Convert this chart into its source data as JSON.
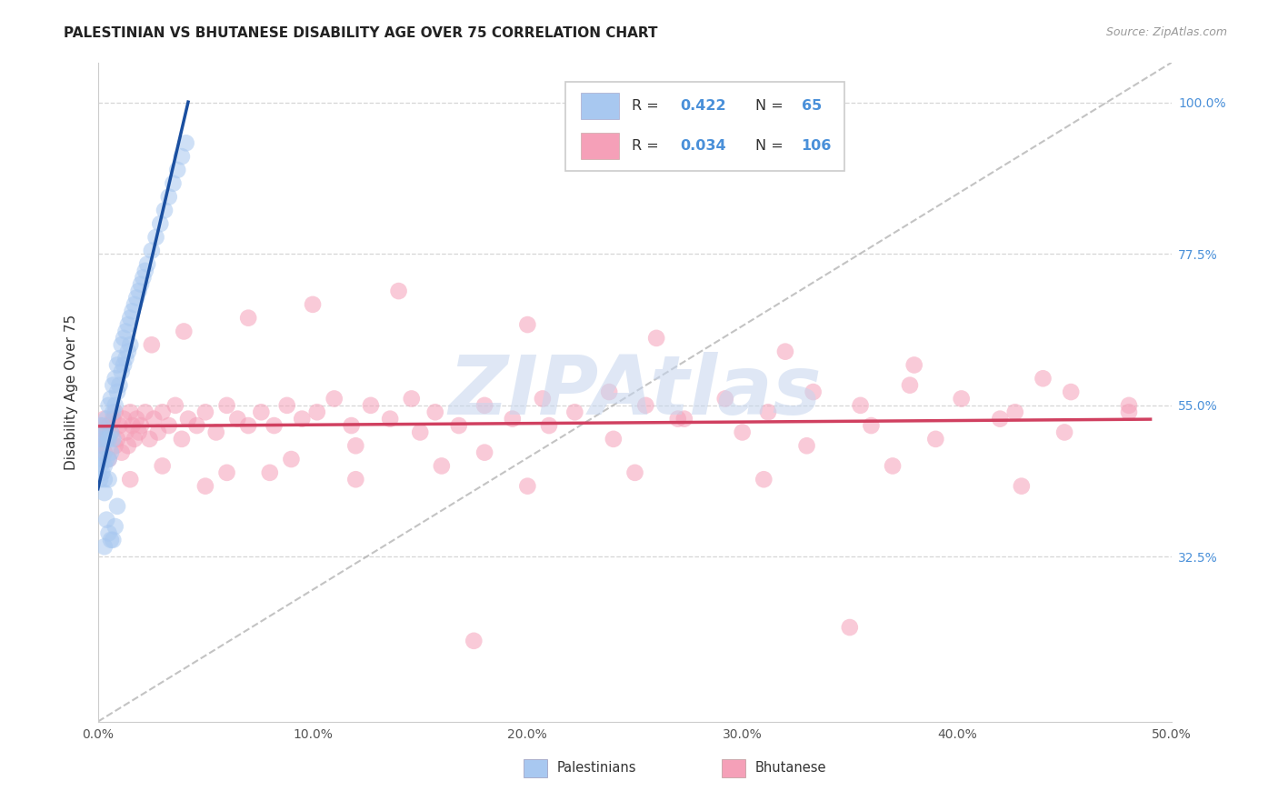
{
  "title": "PALESTINIAN VS BHUTANESE DISABILITY AGE OVER 75 CORRELATION CHART",
  "source": "Source: ZipAtlas.com",
  "ylabel": "Disability Age Over 75",
  "xlim": [
    0.0,
    0.5
  ],
  "ylim": [
    0.08,
    1.06
  ],
  "xtick_vals": [
    0.0,
    0.1,
    0.2,
    0.3,
    0.4,
    0.5
  ],
  "xtick_labels": [
    "0.0%",
    "10.0%",
    "20.0%",
    "30.0%",
    "40.0%",
    "50.0%"
  ],
  "ytick_vals": [
    0.325,
    0.55,
    0.775,
    1.0
  ],
  "ytick_labels": [
    "32.5%",
    "55.0%",
    "77.5%",
    "100.0%"
  ],
  "blue_scatter_color": "#A8C8F0",
  "blue_line_color": "#1A4FA0",
  "pink_scatter_color": "#F5A0B8",
  "pink_line_color": "#D04060",
  "diag_color": "#AAAAAA",
  "grid_color": "#CCCCCC",
  "R_pal": "0.422",
  "N_pal": "65",
  "R_bhu": "0.034",
  "N_bhu": "106",
  "watermark": "ZIPAtlas",
  "watermark_color": "#C5D5EE",
  "label_pal": "Palestinians",
  "label_bhu": "Bhutanese",
  "right_axis_color": "#4A90D9",
  "val_color": "#4A90D9",
  "title_color": "#222222",
  "source_color": "#999999",
  "legend_box_color": "#DDDDDD",
  "scatter_size": 180,
  "scatter_alpha": 0.55
}
